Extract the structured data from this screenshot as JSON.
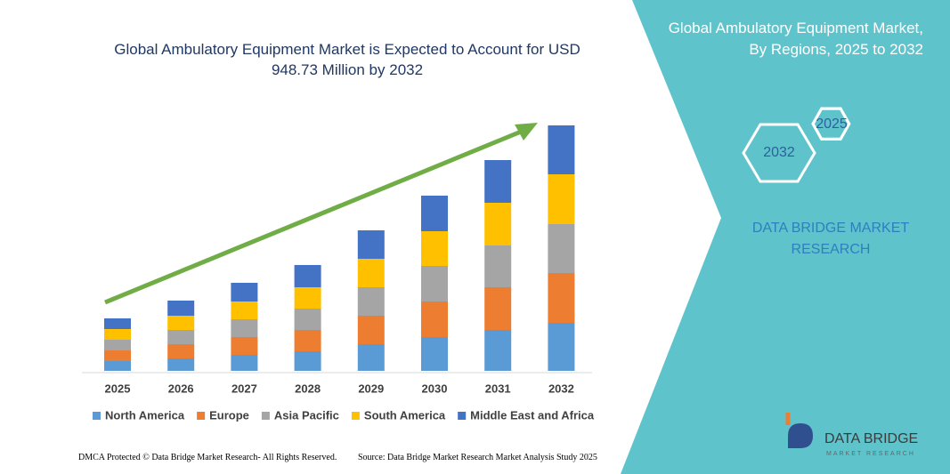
{
  "chart_data": {
    "type": "stacked_bar",
    "title": "Global Ambulatory Equipment Market is Expected to Account for USD 948.73 Million by 2032",
    "categories": [
      "2025",
      "2026",
      "2027",
      "2028",
      "2029",
      "2030",
      "2031",
      "2032"
    ],
    "series": [
      {
        "name": "North America",
        "color": "#5b9bd5",
        "values": [
          11,
          14,
          18,
          22,
          30,
          38,
          46,
          54
        ]
      },
      {
        "name": "Europe",
        "color": "#ed7d31",
        "values": [
          12,
          16,
          20,
          24,
          32,
          40,
          48,
          56
        ]
      },
      {
        "name": "Asia Pacific",
        "color": "#a5a5a5",
        "values": [
          12,
          16,
          20,
          24,
          32,
          40,
          47,
          55
        ]
      },
      {
        "name": "South America",
        "color": "#ffc000",
        "values": [
          12,
          16,
          20,
          24,
          32,
          39,
          48,
          56
        ]
      },
      {
        "name": "Middle East and Africa",
        "color": "#4472c4",
        "values": [
          12,
          17,
          21,
          25,
          32,
          40,
          48,
          55
        ]
      }
    ],
    "ylim": [
      0,
      300
    ]
  },
  "side_panel": {
    "title": "Global Ambulatory Equipment Market, By Regions, 2025 to 2032",
    "hex_start": "2025",
    "hex_end": "2032",
    "brand": "DATA BRIDGE MARKET RESEARCH"
  },
  "logo": {
    "name": "DATA BRIDGE",
    "tagline": "MARKET RESEARCH"
  },
  "footer": {
    "left": "DMCA Protected © Data Bridge Market Research- All Rights Reserved.",
    "right": "Source: Data Bridge Market Research Market Analysis Study 2025"
  }
}
